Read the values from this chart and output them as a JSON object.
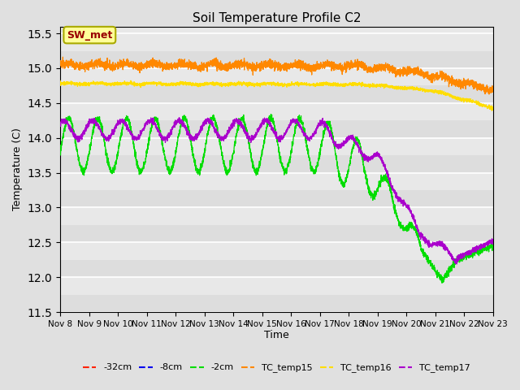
{
  "title": "Soil Temperature Profile C2",
  "xlabel": "Time",
  "ylabel": "Temperature (C)",
  "ylim": [
    11.5,
    15.6
  ],
  "xlim": [
    0,
    360
  ],
  "annotation": "SW_met",
  "plot_bg_color": "#e8e8e8",
  "plot_bg_alt_color": "#d8d8d8",
  "fig_bg_color": "#e0e0e0",
  "x_tick_labels": [
    "Nov 8",
    "Nov 9",
    "Nov 10",
    "Nov 11",
    "Nov 12",
    "Nov 13",
    "Nov 14",
    "Nov 15",
    "Nov 16",
    "Nov 17",
    "Nov 18",
    "Nov 19",
    "Nov 20",
    "Nov 21",
    "Nov 22",
    "Nov 23"
  ],
  "legend_labels": [
    "-32cm",
    "-8cm",
    "-2cm",
    "TC_temp15",
    "TC_temp16",
    "TC_temp17"
  ],
  "line_colors": [
    "#ff2200",
    "#0000ee",
    "#00dd00",
    "#ff8800",
    "#ffdd00",
    "#aa00cc"
  ],
  "annotation_text_color": "#990000",
  "annotation_bg_color": "#ffff99",
  "annotation_border_color": "#aaaa00"
}
